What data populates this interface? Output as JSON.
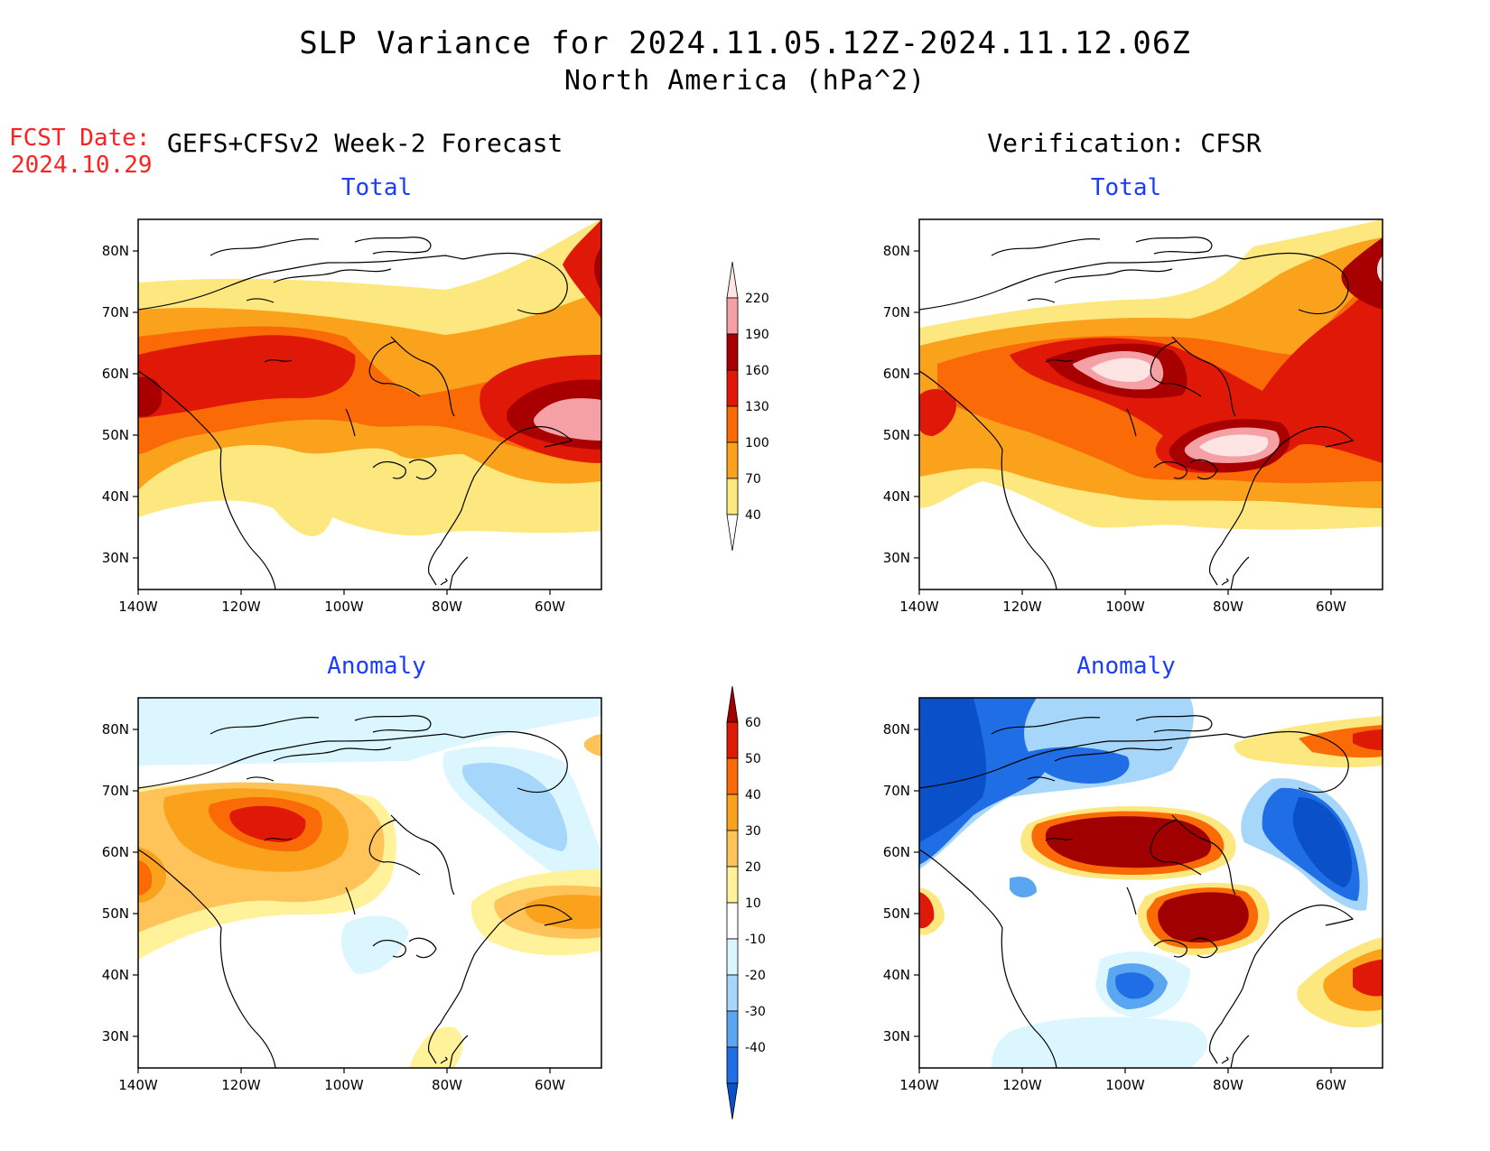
{
  "header": {
    "title": "SLP Variance for 2024.11.05.12Z-2024.11.12.06Z",
    "subtitle": "North America (hPa^2)",
    "fcst_label": "FCST Date:",
    "fcst_date": "2024.10.29",
    "left_heading": "GEFS+CFSv2 Week-2 Forecast",
    "right_heading": "Verification: CFSR"
  },
  "panels": [
    {
      "id": "fc-total",
      "title": "Total"
    },
    {
      "id": "ver-total",
      "title": "Total"
    },
    {
      "id": "fc-anom",
      "title": "Anomaly"
    },
    {
      "id": "ver-anom",
      "title": "Anomaly"
    }
  ],
  "axes": {
    "lat_ticks": [
      "80N",
      "70N",
      "60N",
      "50N",
      "40N",
      "30N"
    ],
    "lon_ticks": [
      "140W",
      "120W",
      "100W",
      "80W",
      "60W"
    ]
  },
  "colorbars": {
    "total": {
      "levels": [
        "220",
        "190",
        "160",
        "130",
        "100",
        "70",
        "40"
      ],
      "colors": [
        "#ffe4e4",
        "#f4a0a4",
        "#a80000",
        "#e01808",
        "#fa6a06",
        "#fba21c",
        "#fde880"
      ]
    },
    "anomaly": {
      "levels": [
        "60",
        "50",
        "40",
        "30",
        "20",
        "10",
        "-10",
        "-20",
        "-30",
        "-40"
      ],
      "colors": [
        "#a00000",
        "#dc1a06",
        "#fa6a06",
        "#fba21c",
        "#fec45a",
        "#fff29a",
        "#ffffff",
        "#dcf6ff",
        "#a6d6fa",
        "#5aa6f0",
        "#1f6ee6",
        "#0a50c8"
      ]
    }
  }
}
